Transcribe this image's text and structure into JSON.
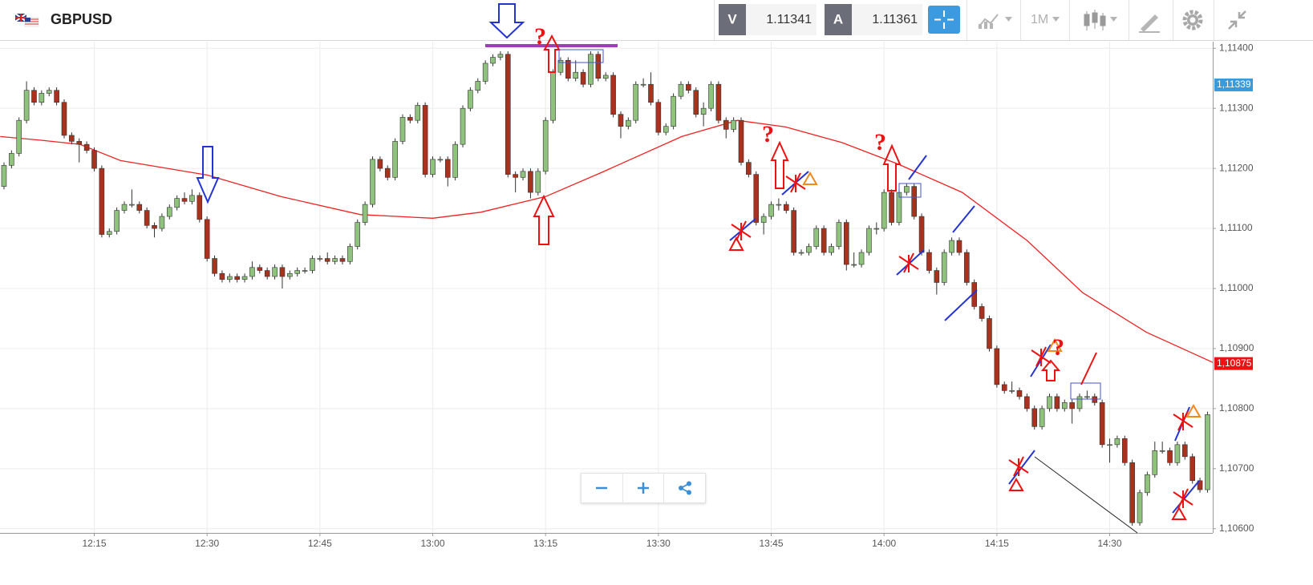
{
  "header": {
    "symbol": "GBPUSD",
    "sell_label": "V",
    "sell_price": "1.11341",
    "buy_label": "A",
    "buy_price": "1.11361",
    "timeframe": "1M"
  },
  "chart_data": {
    "type": "candlestick",
    "annotations": {
      "question_mark": "?"
    },
    "x": [
      723,
      724,
      725,
      726,
      727,
      728,
      729,
      730,
      731,
      732,
      733,
      734,
      735,
      736,
      737,
      738,
      739,
      740,
      741,
      742,
      743,
      744,
      745,
      746,
      747,
      748,
      749,
      750,
      751,
      752,
      753,
      754,
      755,
      756,
      757,
      758,
      759,
      760,
      761,
      762,
      763,
      764,
      765,
      766,
      767,
      768,
      769,
      770,
      771,
      772,
      773,
      774,
      775,
      776,
      777,
      778,
      779,
      780,
      781,
      782,
      783,
      784,
      785,
      786,
      787,
      788,
      789,
      790,
      791,
      792,
      793,
      794,
      795,
      796,
      797,
      798,
      799,
      800,
      801,
      802,
      803,
      804,
      805,
      806,
      807,
      808,
      809,
      810,
      811,
      812,
      813,
      814,
      815,
      816,
      817,
      818,
      819,
      820,
      821,
      822,
      823,
      824,
      825,
      826,
      827,
      828,
      829,
      830,
      831,
      832,
      833,
      834,
      835,
      836,
      837,
      838,
      839,
      840,
      841,
      842,
      843,
      844,
      845,
      846,
      847,
      848,
      849,
      850,
      851,
      852,
      853,
      854,
      855,
      856,
      857,
      858,
      859,
      860,
      861,
      862,
      863,
      864,
      865,
      866,
      867,
      868,
      869,
      870,
      871,
      872,
      873,
      874,
      875,
      876,
      877,
      878,
      879,
      880,
      881,
      882,
      883
    ],
    "open": [
      1.1117,
      1.11205,
      1.11225,
      1.1128,
      1.1133,
      1.1131,
      1.11325,
      1.1133,
      1.1131,
      1.11255,
      1.11245,
      1.1124,
      1.1123,
      1.112,
      1.1109,
      1.11095,
      1.1113,
      1.1114,
      1.1114,
      1.1113,
      1.11105,
      1.111,
      1.1112,
      1.11135,
      1.1115,
      1.11145,
      1.11155,
      1.11115,
      1.1105,
      1.11025,
      1.11015,
      1.1102,
      1.11015,
      1.1102,
      1.11035,
      1.1103,
      1.1102,
      1.11035,
      1.1102,
      1.11025,
      1.1103,
      1.1103,
      1.1105,
      1.1105,
      1.11045,
      1.1105,
      1.11045,
      1.1107,
      1.1111,
      1.1114,
      1.11215,
      1.112,
      1.11185,
      1.11245,
      1.11285,
      1.1128,
      1.11305,
      1.1119,
      1.11215,
      1.11215,
      1.11185,
      1.1124,
      1.113,
      1.1133,
      1.11345,
      1.11375,
      1.11385,
      1.1139,
      1.1119,
      1.11185,
      1.11195,
      1.1116,
      1.11195,
      1.1128,
      1.1136,
      1.1138,
      1.1135,
      1.1136,
      1.1134,
      1.1139,
      1.1135,
      1.11355,
      1.1129,
      1.1127,
      1.1128,
      1.1134,
      1.1134,
      1.1131,
      1.1126,
      1.1127,
      1.1132,
      1.1134,
      1.1133,
      1.1129,
      1.113,
      1.1134,
      1.1128,
      1.11265,
      1.1128,
      1.1121,
      1.1119,
      1.1111,
      1.1112,
      1.1114,
      1.1114,
      1.1113,
      1.1106,
      1.1106,
      1.1107,
      1.111,
      1.1106,
      1.1107,
      1.1111,
      1.1104,
      1.1104,
      1.1106,
      1.111,
      1.111,
      1.1116,
      1.1111,
      1.1116,
      1.1117,
      1.1112,
      1.1106,
      1.1103,
      1.1101,
      1.1106,
      1.1108,
      1.1106,
      1.1101,
      1.1097,
      1.1095,
      1.109,
      1.1084,
      1.1083,
      1.1083,
      1.1082,
      1.108,
      1.1077,
      1.108,
      1.1082,
      1.108,
      1.1081,
      1.108,
      1.1082,
      1.1082,
      1.1081,
      1.1074,
      1.1074,
      1.1075,
      1.1071,
      1.1061,
      1.1066,
      1.1069,
      1.1073,
      1.1073,
      1.1071,
      1.1074,
      1.1072,
      1.1068,
      1.10665
    ],
    "high": [
      1.1121,
      1.1123,
      1.11285,
      1.11345,
      1.11335,
      1.1133,
      1.11335,
      1.11335,
      1.11315,
      1.1126,
      1.1125,
      1.11245,
      1.11235,
      1.11205,
      1.111,
      1.11135,
      1.11145,
      1.11165,
      1.11145,
      1.11135,
      1.1111,
      1.11125,
      1.1114,
      1.11155,
      1.1116,
      1.11165,
      1.1116,
      1.1112,
      1.11055,
      1.1103,
      1.11025,
      1.11025,
      1.11025,
      1.11045,
      1.1104,
      1.11035,
      1.1104,
      1.1104,
      1.1103,
      1.11035,
      1.11035,
      1.11055,
      1.11055,
      1.1106,
      1.11055,
      1.11055,
      1.11075,
      1.11115,
      1.11145,
      1.1122,
      1.1122,
      1.11205,
      1.1125,
      1.1129,
      1.1129,
      1.1131,
      1.1131,
      1.1122,
      1.1122,
      1.1122,
      1.11245,
      1.11305,
      1.11335,
      1.1135,
      1.1138,
      1.1139,
      1.11395,
      1.11395,
      1.11195,
      1.112,
      1.112,
      1.112,
      1.11285,
      1.11365,
      1.11385,
      1.11385,
      1.1138,
      1.11365,
      1.11395,
      1.11395,
      1.1136,
      1.1136,
      1.11295,
      1.11285,
      1.11345,
      1.1135,
      1.1136,
      1.11315,
      1.11275,
      1.11325,
      1.11345,
      1.11345,
      1.11335,
      1.1131,
      1.11345,
      1.11345,
      1.11285,
      1.11285,
      1.11285,
      1.11215,
      1.11195,
      1.11125,
      1.11145,
      1.1115,
      1.11145,
      1.11135,
      1.11065,
      1.11075,
      1.11105,
      1.11105,
      1.11075,
      1.11115,
      1.11115,
      1.1106,
      1.11065,
      1.11105,
      1.1111,
      1.11165,
      1.11165,
      1.11165,
      1.11175,
      1.11175,
      1.11125,
      1.11065,
      1.11035,
      1.11065,
      1.11085,
      1.11085,
      1.11065,
      1.11015,
      1.10975,
      1.10955,
      1.10905,
      1.10845,
      1.10845,
      1.10835,
      1.10825,
      1.10805,
      1.10805,
      1.10825,
      1.10825,
      1.10815,
      1.10815,
      1.10825,
      1.1083,
      1.10825,
      1.10815,
      1.1075,
      1.10755,
      1.10755,
      1.10715,
      1.10665,
      1.10695,
      1.10745,
      1.10745,
      1.10735,
      1.10745,
      1.10745,
      1.10725,
      1.10685,
      1.10795
    ],
    "low": [
      1.11165,
      1.112,
      1.1122,
      1.11275,
      1.11305,
      1.11305,
      1.1132,
      1.11305,
      1.1125,
      1.1124,
      1.1121,
      1.11225,
      1.11195,
      1.11085,
      1.11085,
      1.1109,
      1.11125,
      1.11135,
      1.11125,
      1.111,
      1.11085,
      1.11095,
      1.11115,
      1.1113,
      1.1114,
      1.1114,
      1.1111,
      1.11045,
      1.1102,
      1.1101,
      1.1101,
      1.1101,
      1.1101,
      1.11015,
      1.11025,
      1.11015,
      1.11015,
      1.11,
      1.11015,
      1.1102,
      1.11025,
      1.11025,
      1.11045,
      1.1104,
      1.1104,
      1.1104,
      1.1104,
      1.11065,
      1.11105,
      1.11135,
      1.11195,
      1.1118,
      1.1118,
      1.1124,
      1.11275,
      1.11275,
      1.11185,
      1.11185,
      1.1121,
      1.1117,
      1.1118,
      1.11235,
      1.11295,
      1.11325,
      1.1134,
      1.1137,
      1.1138,
      1.11185,
      1.1116,
      1.1118,
      1.1115,
      1.11155,
      1.1119,
      1.11275,
      1.11355,
      1.11345,
      1.11345,
      1.11335,
      1.11335,
      1.11345,
      1.11345,
      1.11285,
      1.1125,
      1.11265,
      1.11275,
      1.11335,
      1.11305,
      1.11255,
      1.11255,
      1.11265,
      1.11315,
      1.11325,
      1.11285,
      1.1127,
      1.11295,
      1.11275,
      1.1125,
      1.1126,
      1.11205,
      1.11185,
      1.11105,
      1.1109,
      1.11115,
      1.1113,
      1.11125,
      1.11055,
      1.11055,
      1.11055,
      1.11065,
      1.11055,
      1.11055,
      1.11065,
      1.1103,
      1.11035,
      1.11035,
      1.11055,
      1.1109,
      1.11095,
      1.11105,
      1.11105,
      1.11155,
      1.11115,
      1.11055,
      1.11025,
      1.1099,
      1.11005,
      1.11055,
      1.11055,
      1.11005,
      1.10965,
      1.10945,
      1.10895,
      1.10835,
      1.10825,
      1.10825,
      1.10815,
      1.10795,
      1.10765,
      1.10765,
      1.10795,
      1.10795,
      1.10795,
      1.10775,
      1.10795,
      1.10815,
      1.10805,
      1.10735,
      1.1071,
      1.10735,
      1.10705,
      1.10605,
      1.10605,
      1.10655,
      1.10685,
      1.10725,
      1.10705,
      1.10705,
      1.10715,
      1.10675,
      1.1066,
      1.1066
    ],
    "close": [
      1.11205,
      1.11225,
      1.1128,
      1.1133,
      1.1131,
      1.11325,
      1.1133,
      1.1131,
      1.11255,
      1.11245,
      1.1124,
      1.1123,
      1.112,
      1.1109,
      1.11095,
      1.1113,
      1.1114,
      1.1114,
      1.1113,
      1.11105,
      1.111,
      1.1112,
      1.11135,
      1.1115,
      1.11145,
      1.11155,
      1.11115,
      1.1105,
      1.11025,
      1.11015,
      1.1102,
      1.11015,
      1.1102,
      1.11035,
      1.1103,
      1.1102,
      1.11035,
      1.1102,
      1.11025,
      1.1103,
      1.1103,
      1.1105,
      1.1105,
      1.11045,
      1.1105,
      1.11045,
      1.1107,
      1.1111,
      1.1114,
      1.11215,
      1.112,
      1.11185,
      1.11245,
      1.11285,
      1.1128,
      1.11305,
      1.1119,
      1.11215,
      1.11215,
      1.11185,
      1.1124,
      1.113,
      1.1133,
      1.11345,
      1.11375,
      1.11385,
      1.1139,
      1.1119,
      1.11185,
      1.11195,
      1.1116,
      1.11195,
      1.1128,
      1.1136,
      1.1138,
      1.1135,
      1.1136,
      1.1134,
      1.1139,
      1.1135,
      1.11355,
      1.1129,
      1.1127,
      1.1128,
      1.1134,
      1.1134,
      1.1131,
      1.1126,
      1.1127,
      1.1132,
      1.1134,
      1.1133,
      1.1129,
      1.113,
      1.1134,
      1.1128,
      1.11265,
      1.1128,
      1.1121,
      1.1119,
      1.1111,
      1.1112,
      1.1114,
      1.1114,
      1.1113,
      1.1106,
      1.1106,
      1.1107,
      1.111,
      1.1106,
      1.1107,
      1.1111,
      1.1104,
      1.1104,
      1.1106,
      1.111,
      1.111,
      1.1116,
      1.1111,
      1.1116,
      1.1117,
      1.1112,
      1.1106,
      1.1103,
      1.1101,
      1.1106,
      1.1108,
      1.1106,
      1.1101,
      1.1097,
      1.1095,
      1.109,
      1.1084,
      1.1083,
      1.1083,
      1.1082,
      1.108,
      1.1077,
      1.108,
      1.1082,
      1.108,
      1.1081,
      1.108,
      1.1082,
      1.1082,
      1.1081,
      1.1074,
      1.1074,
      1.1075,
      1.1071,
      1.1061,
      1.1066,
      1.1069,
      1.1073,
      1.1073,
      1.1071,
      1.1074,
      1.1072,
      1.1068,
      1.10665,
      1.1079
    ],
    "up_color": "#8fc27d",
    "down_color": "#a8321e",
    "wick_color": "#333333",
    "moving_average": {
      "color": "#ee2222",
      "x": [
        722.5,
        727.8,
        733.1,
        738.5,
        750,
        759.8,
        770.4,
        780,
        786.4,
        795,
        802.4,
        813.1,
        820.5,
        826.9,
        834.4,
        841.9,
        850.4,
        859,
        866.4,
        874.9,
        883.7
      ],
      "values": [
        1.11253,
        1.11247,
        1.1124,
        1.11213,
        1.11189,
        1.11153,
        1.11123,
        1.11117,
        1.11127,
        1.11153,
        1.11193,
        1.11253,
        1.1128,
        1.11269,
        1.11243,
        1.11207,
        1.1116,
        1.1108,
        1.10993,
        1.10927,
        1.10877
      ]
    },
    "price_tags": [
      {
        "value": 1.11339,
        "label": "1,11339",
        "color": "#3b9ad9"
      },
      {
        "value": 1.10875,
        "label": "1,10875",
        "color": "#ee1111"
      }
    ],
    "xlim": [
      722.47,
      883.7
    ],
    "ylim": [
      1.10593,
      1.11411
    ],
    "xticks": [
      {
        "value": 735,
        "label": "12:15"
      },
      {
        "value": 750,
        "label": "12:30"
      },
      {
        "value": 765,
        "label": "12:45"
      },
      {
        "value": 780,
        "label": "13:00"
      },
      {
        "value": 795,
        "label": "13:15"
      },
      {
        "value": 810,
        "label": "13:30"
      },
      {
        "value": 825,
        "label": "13:45"
      },
      {
        "value": 840,
        "label": "14:00"
      },
      {
        "value": 855,
        "label": "14:15"
      },
      {
        "value": 870,
        "label": "14:30"
      }
    ],
    "yticks": [
      {
        "value": 1.114,
        "label": "1,11400"
      },
      {
        "value": 1.113,
        "label": "1,11300"
      },
      {
        "value": 1.112,
        "label": "1,11200"
      },
      {
        "value": 1.111,
        "label": "1,11100"
      },
      {
        "value": 1.11,
        "label": "1,11000"
      },
      {
        "value": 1.109,
        "label": "1,10900"
      },
      {
        "value": 1.108,
        "label": "1,10800"
      },
      {
        "value": 1.107,
        "label": "1,10700"
      },
      {
        "value": 1.106,
        "label": "1,10600"
      }
    ],
    "grid": true
  }
}
